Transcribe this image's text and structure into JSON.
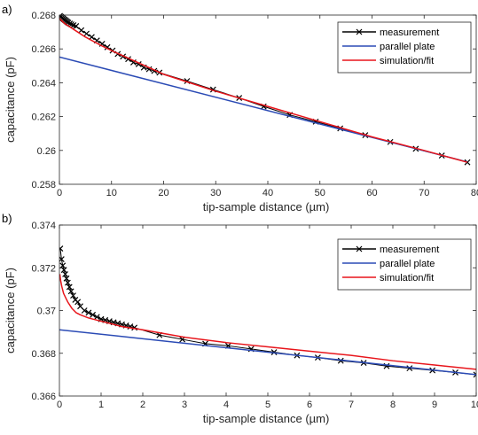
{
  "chart_data": [
    {
      "type": "line",
      "panel_label": "a)",
      "xlabel": "tip-sample distance (µm)",
      "ylabel": "capacitance (pF)",
      "xlim": [
        0,
        80
      ],
      "ylim": [
        0.258,
        0.268
      ],
      "xticks": [
        0,
        10,
        20,
        30,
        40,
        50,
        60,
        70,
        80
      ],
      "xtick_labels": [
        "0",
        "10",
        "20",
        "30",
        "40",
        "50",
        "60",
        "70",
        "80"
      ],
      "yticks": [
        0.258,
        0.26,
        0.262,
        0.264,
        0.266,
        0.268
      ],
      "ytick_labels": [
        "0.258",
        "0.26",
        "0.262",
        "0.264",
        "0.266",
        "0.268"
      ],
      "legend_position": "top-right",
      "series": [
        {
          "name": "measurement",
          "color": "#000000",
          "marker": "x",
          "x": [
            0.1,
            0.3,
            0.5,
            0.7,
            0.9,
            1.1,
            1.3,
            1.5,
            1.7,
            2.0,
            2.3,
            2.7,
            3.2,
            4.2,
            5.2,
            6.2,
            7.2,
            8.2,
            9.2,
            10.2,
            11.2,
            12.2,
            13.2,
            14.2,
            15.2,
            16.2,
            17.2,
            18.2,
            19.2,
            24.5,
            29.5,
            34.5,
            39.2,
            44.2,
            49.2,
            53.9,
            58.7,
            63.5,
            68.4,
            73.4,
            78.3
          ],
          "y": [
            0.26795,
            0.2679,
            0.26785,
            0.2678,
            0.26775,
            0.2677,
            0.26765,
            0.2676,
            0.26755,
            0.2675,
            0.26745,
            0.2674,
            0.26735,
            0.2671,
            0.2669,
            0.2667,
            0.2665,
            0.2663,
            0.2661,
            0.2659,
            0.2657,
            0.26555,
            0.2654,
            0.2652,
            0.2651,
            0.2649,
            0.2648,
            0.2647,
            0.2646,
            0.2641,
            0.2636,
            0.2631,
            0.2626,
            0.2621,
            0.2617,
            0.2613,
            0.2609,
            0.2605,
            0.2601,
            0.2597,
            0.2593
          ]
        },
        {
          "name": "parallel plate",
          "color": "#2b4bb5",
          "x": [
            0,
            78.3
          ],
          "y": [
            0.26552,
            0.25932
          ]
        },
        {
          "name": "simulation/fit",
          "color": "#e8151b",
          "x": [
            0,
            1,
            2,
            3,
            5,
            8,
            10,
            15,
            20,
            25,
            30,
            40,
            50,
            60,
            70,
            78.3
          ],
          "y": [
            0.2678,
            0.2675,
            0.2673,
            0.2671,
            0.2667,
            0.2662,
            0.2659,
            0.2652,
            0.2645,
            0.264,
            0.2635,
            0.2626,
            0.2617,
            0.2608,
            0.26,
            0.2593
          ]
        }
      ]
    },
    {
      "type": "line",
      "panel_label": "b)",
      "xlabel": "tip-sample distance (µm)",
      "ylabel": "capacitance (pF)",
      "xlim": [
        0,
        10
      ],
      "ylim": [
        0.366,
        0.374
      ],
      "xticks": [
        0,
        1,
        2,
        3,
        4,
        5,
        6,
        7,
        8,
        9,
        10
      ],
      "xtick_labels": [
        "0",
        "1",
        "2",
        "3",
        "4",
        "5",
        "6",
        "7",
        "8",
        "9",
        "10"
      ],
      "yticks": [
        0.366,
        0.368,
        0.37,
        0.372,
        0.374
      ],
      "ytick_labels": [
        "0.366",
        "0.368",
        "0.37",
        "0.372",
        "0.374"
      ],
      "legend_position": "top-right",
      "series": [
        {
          "name": "measurement",
          "color": "#000000",
          "marker": "x",
          "x": [
            0.02,
            0.05,
            0.08,
            0.11,
            0.14,
            0.17,
            0.2,
            0.24,
            0.28,
            0.33,
            0.38,
            0.44,
            0.5,
            0.6,
            0.7,
            0.8,
            0.9,
            1.0,
            1.1,
            1.2,
            1.3,
            1.4,
            1.5,
            1.6,
            1.7,
            1.8,
            2.4,
            2.95,
            3.5,
            4.05,
            4.6,
            5.15,
            5.7,
            6.2,
            6.75,
            7.3,
            7.85,
            8.4,
            8.95,
            9.5,
            10.0
          ],
          "y": [
            0.3729,
            0.3724,
            0.3721,
            0.3719,
            0.3717,
            0.3715,
            0.3713,
            0.3711,
            0.3709,
            0.3707,
            0.3705,
            0.3704,
            0.3702,
            0.37,
            0.3699,
            0.3698,
            0.3697,
            0.3696,
            0.36955,
            0.3695,
            0.36945,
            0.3694,
            0.36935,
            0.3693,
            0.36925,
            0.3692,
            0.36885,
            0.36865,
            0.36845,
            0.36835,
            0.3682,
            0.36805,
            0.3679,
            0.3678,
            0.36765,
            0.36755,
            0.3674,
            0.3673,
            0.3672,
            0.3671,
            0.367
          ]
        },
        {
          "name": "parallel plate",
          "color": "#2b4bb5",
          "x": [
            0,
            10
          ],
          "y": [
            0.3691,
            0.367
          ]
        },
        {
          "name": "simulation/fit",
          "color": "#e8151b",
          "x": [
            0.01,
            0.03,
            0.06,
            0.1,
            0.15,
            0.2,
            0.3,
            0.4,
            0.5,
            0.7,
            1.0,
            1.5,
            2.0,
            3.0,
            4.0,
            5.0,
            6.0,
            7.0,
            8.0,
            9.0,
            10.0
          ],
          "y": [
            0.3717,
            0.3714,
            0.3711,
            0.3708,
            0.3706,
            0.3704,
            0.3701,
            0.3699,
            0.3698,
            0.36965,
            0.3695,
            0.36925,
            0.3691,
            0.36875,
            0.3685,
            0.3683,
            0.3681,
            0.3679,
            0.36765,
            0.36745,
            0.36725
          ]
        }
      ]
    }
  ]
}
